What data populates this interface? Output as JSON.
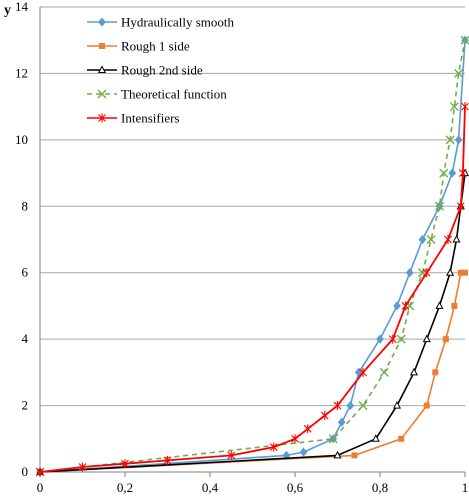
{
  "chart_data": {
    "type": "line",
    "ylabel": "y",
    "xlim": [
      0,
      1
    ],
    "ylim": [
      0,
      14
    ],
    "xticks": [
      0,
      0.2,
      0.4,
      0.6,
      0.8,
      1
    ],
    "xtick_labels": [
      "0",
      "0,2",
      "0,4",
      "0,6",
      "0,8",
      "1"
    ],
    "yticks": [
      0,
      2,
      4,
      6,
      8,
      10,
      12,
      14
    ],
    "ytick_labels": [
      "0",
      "2",
      "4",
      "6",
      "8",
      "10",
      "12",
      "14"
    ],
    "grid": "horizontal",
    "legend": "top-left",
    "series": [
      {
        "name": "Hydraulically smooth",
        "color": "#5b9bd5",
        "marker": "diamond",
        "dash": "solid",
        "x": [
          0,
          0.58,
          0.62,
          0.69,
          0.71,
          0.73,
          0.75,
          0.8,
          0.84,
          0.87,
          0.9,
          0.94,
          0.97,
          0.985,
          1.0
        ],
        "y": [
          0,
          0.5,
          0.6,
          1,
          1.5,
          2,
          3,
          4,
          5,
          6,
          7,
          8,
          9,
          10,
          13
        ]
      },
      {
        "name": "Rough 1 side",
        "color": "#ed7d31",
        "marker": "square",
        "dash": "solid",
        "x": [
          0,
          0.74,
          0.85,
          0.91,
          0.93,
          0.955,
          0.975,
          0.99,
          1.0
        ],
        "y": [
          0,
          0.5,
          1,
          2,
          3,
          4,
          5,
          6,
          6
        ]
      },
      {
        "name": "Rough 2nd side",
        "color": "#000000",
        "marker": "triangle",
        "dash": "solid",
        "x": [
          0,
          0.7,
          0.79,
          0.84,
          0.88,
          0.91,
          0.94,
          0.965,
          0.98,
          0.99,
          1.0
        ],
        "y": [
          0,
          0.5,
          1,
          2,
          3,
          4,
          5,
          6,
          7,
          8,
          9
        ]
      },
      {
        "name": "Theoretical function",
        "color": "#70ad47",
        "marker": "x",
        "dash": "dashed",
        "x": [
          0,
          0.69,
          0.76,
          0.81,
          0.85,
          0.87,
          0.9,
          0.92,
          0.94,
          0.95,
          0.965,
          0.975,
          0.985,
          1.0
        ],
        "y": [
          0,
          1,
          2,
          3,
          4,
          5,
          6,
          7,
          8,
          9,
          10,
          11,
          12,
          13
        ]
      },
      {
        "name": "Intensifiers",
        "color": "#ff0000",
        "marker": "star",
        "dash": "solid",
        "x": [
          0,
          0.1,
          0.2,
          0.3,
          0.45,
          0.55,
          0.6,
          0.63,
          0.67,
          0.7,
          0.76,
          0.83,
          0.86,
          0.91,
          0.96,
          0.99,
          0.995,
          1.0
        ],
        "y": [
          0,
          0.15,
          0.25,
          0.35,
          0.5,
          0.75,
          1,
          1.3,
          1.7,
          2,
          3,
          4,
          5,
          6,
          7,
          8,
          9,
          11
        ]
      }
    ]
  }
}
